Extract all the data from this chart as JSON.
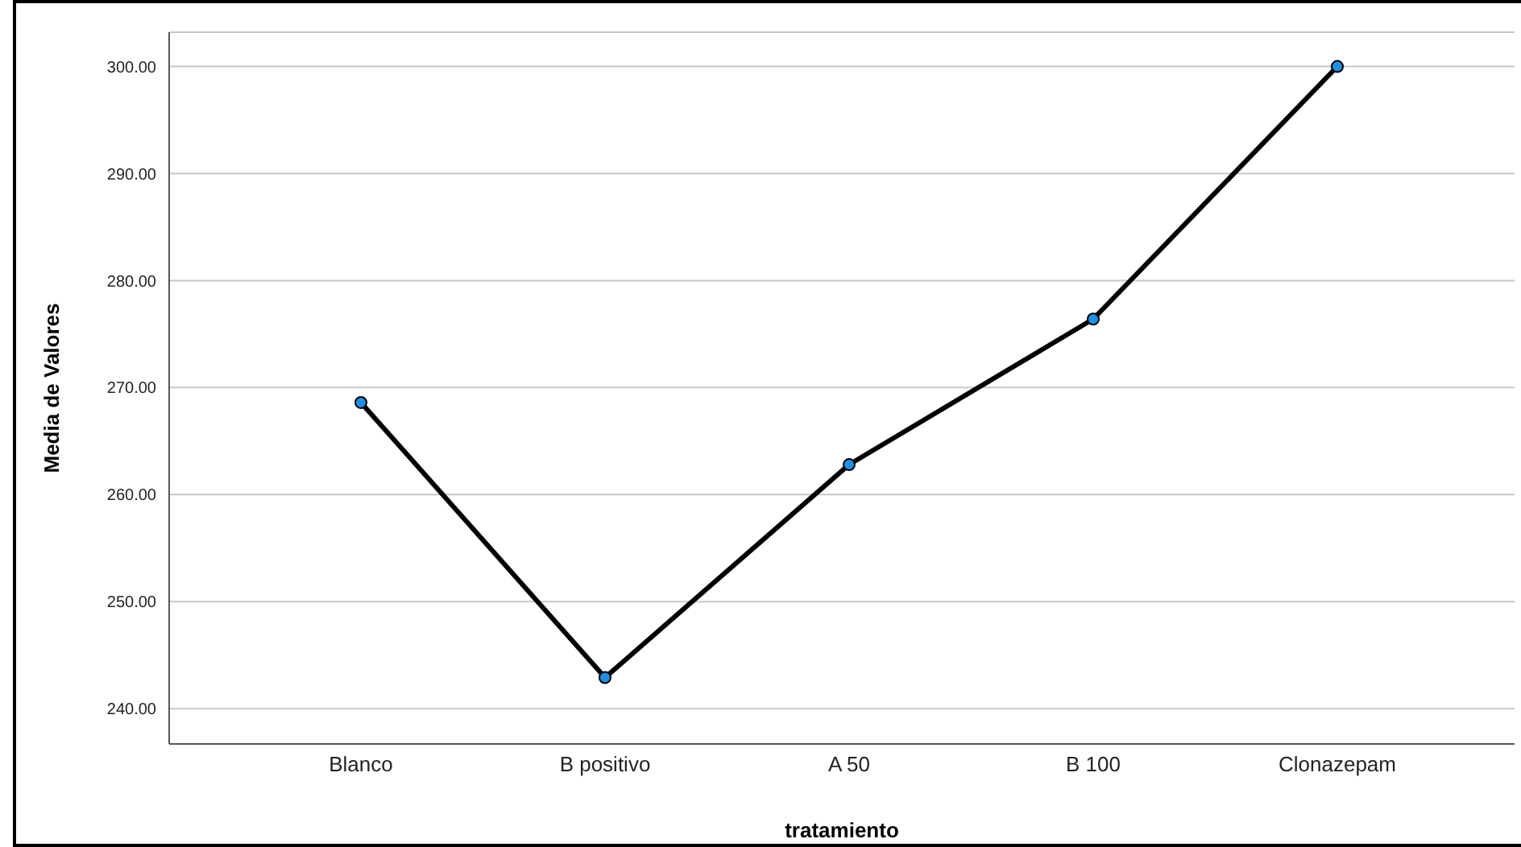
{
  "chart_data": {
    "type": "line",
    "xlabel": "tratamiento",
    "ylabel": "Media de Valores",
    "categories": [
      "Blanco",
      "B positivo",
      "A 50",
      "B 100",
      "Clonazepam"
    ],
    "series": [
      {
        "color": "#000000",
        "values": [
          268.6,
          242.9,
          262.8,
          276.4,
          300.0
        ]
      }
    ],
    "ylim": [
      236.7,
      303.2
    ],
    "yticks": [
      {
        "value": 240,
        "label": "240.00"
      },
      {
        "value": 250,
        "label": "250.00"
      },
      {
        "value": 260,
        "label": "260.00"
      },
      {
        "value": 270,
        "label": "270.00"
      },
      {
        "value": 280,
        "label": "280.00"
      },
      {
        "value": 290,
        "label": "290.00"
      },
      {
        "value": 300,
        "label": "300.00"
      }
    ],
    "grid": "y",
    "legend": false,
    "marker": "circle",
    "line_style": "solid"
  }
}
